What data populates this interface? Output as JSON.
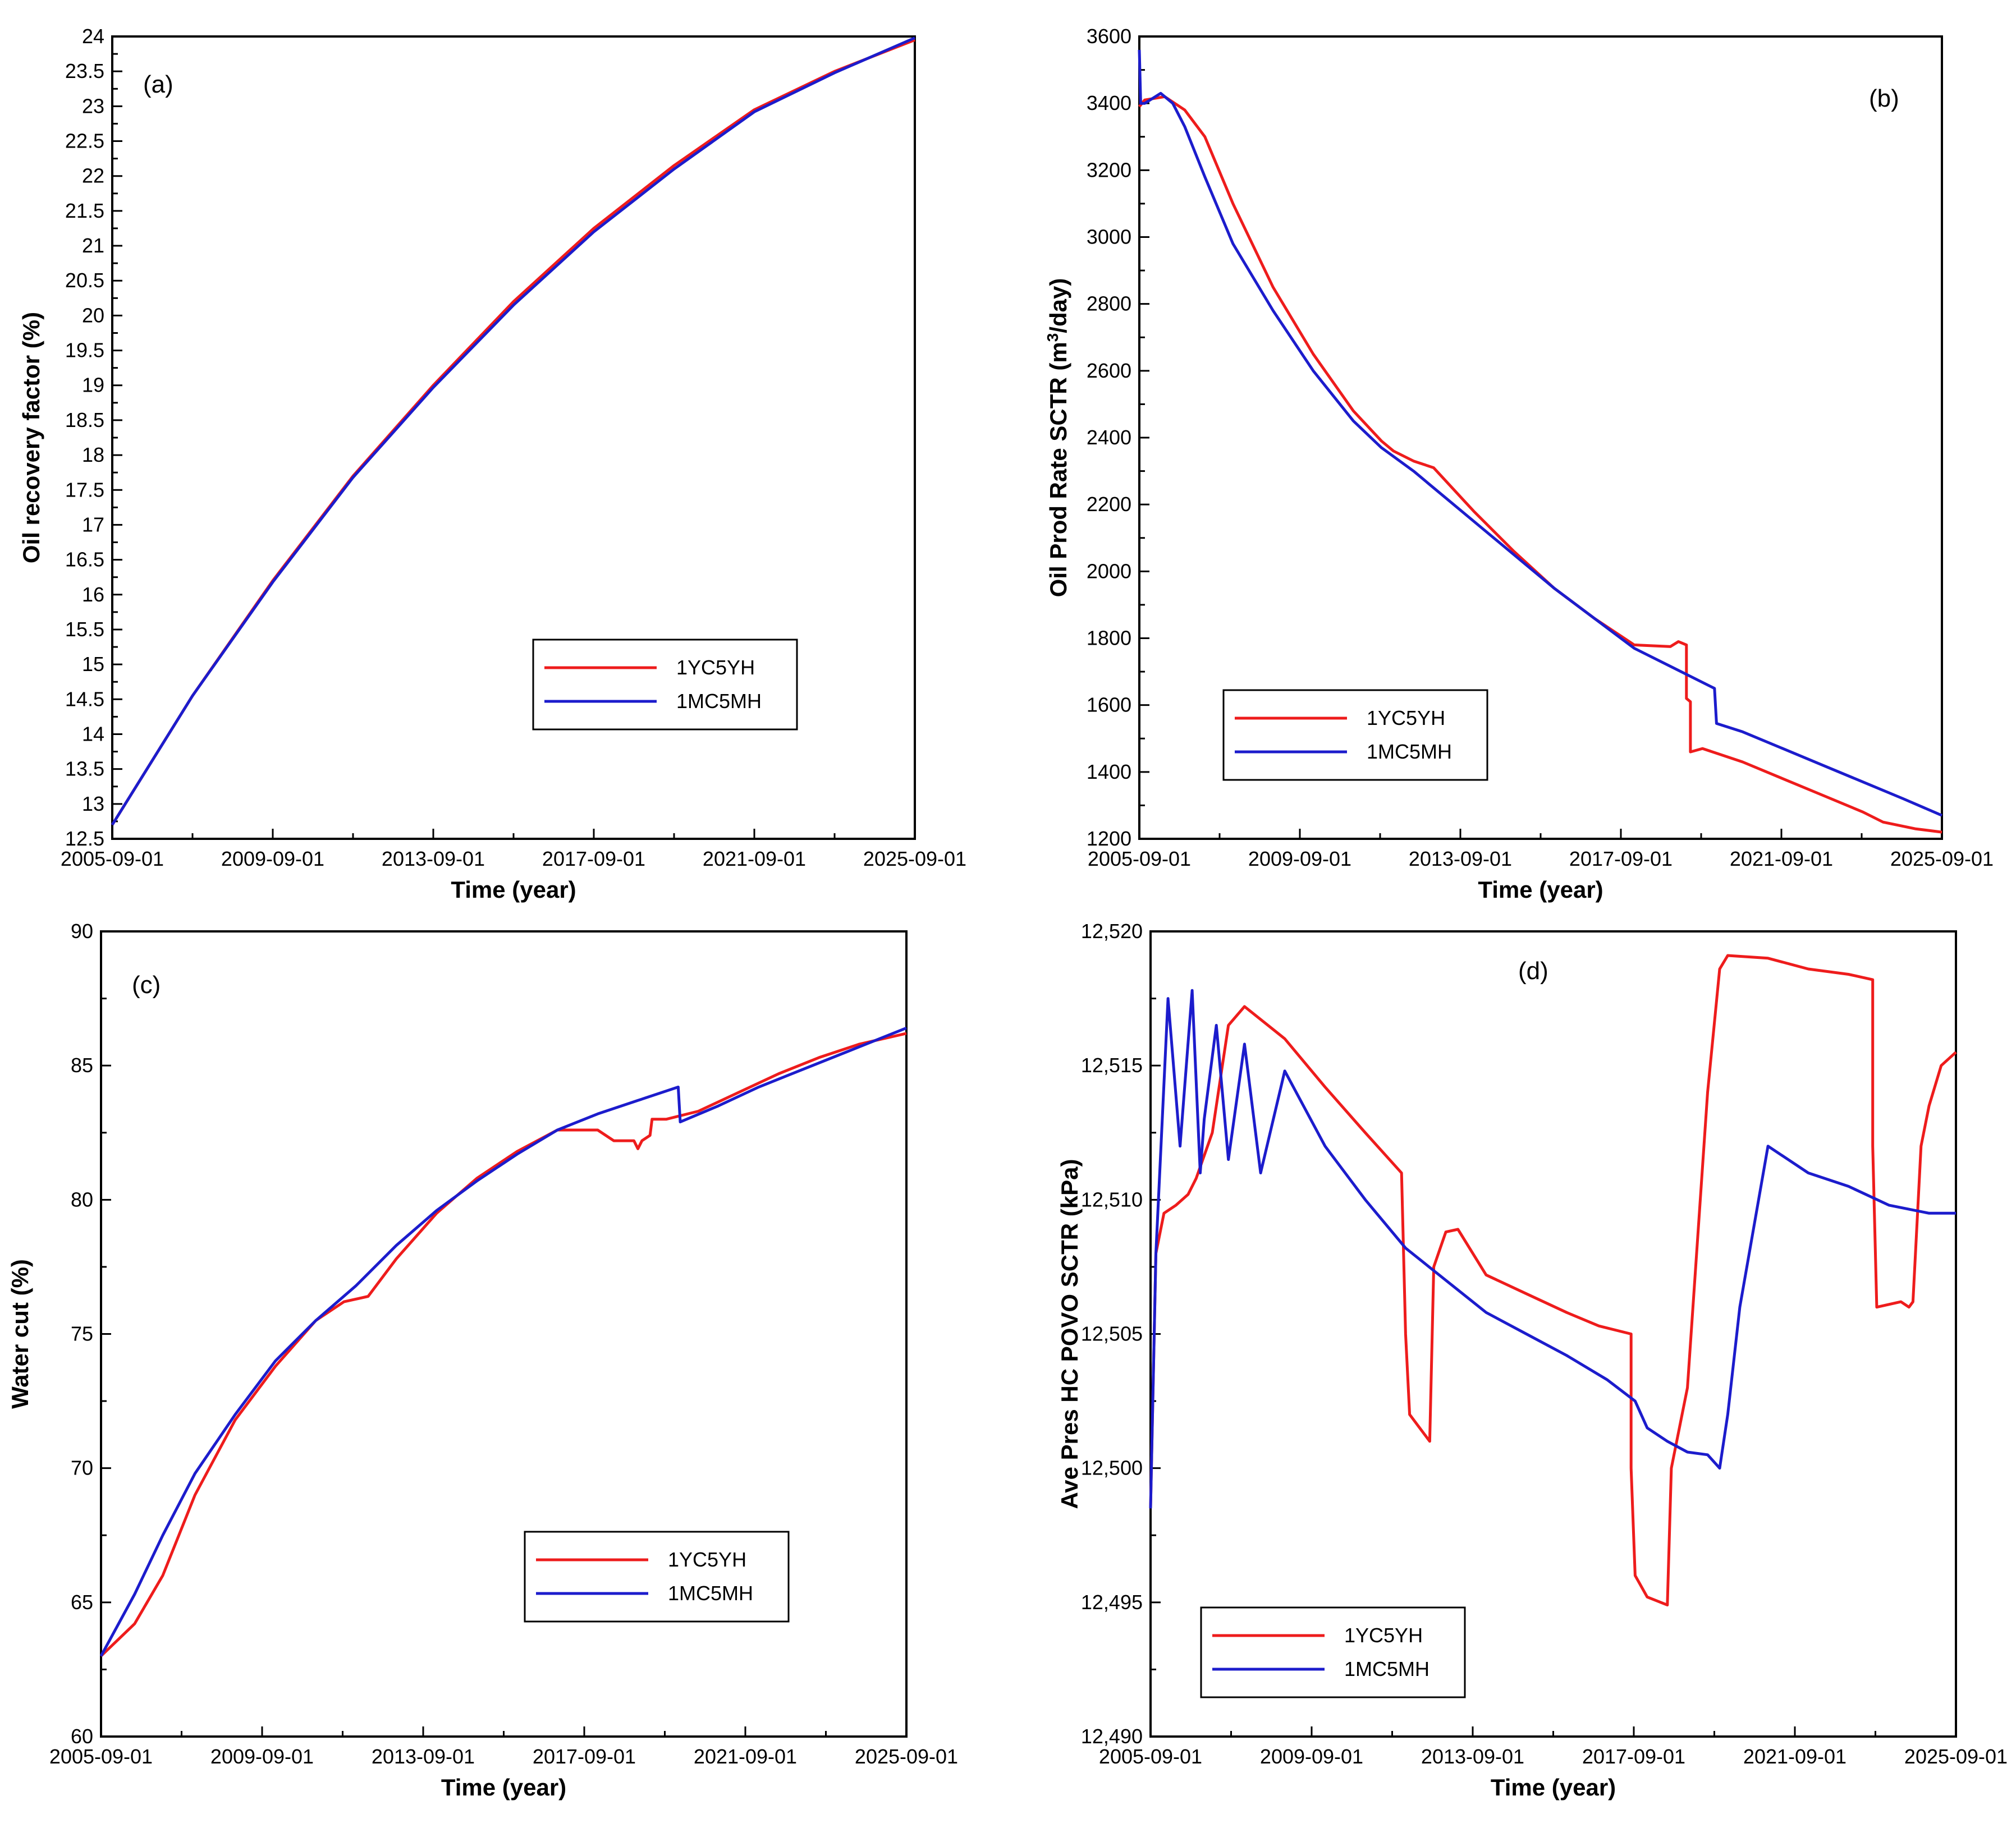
{
  "colors": {
    "red": "#ee1c1c",
    "blue": "#1c1ccc"
  },
  "chart_data": [
    {
      "type": "line",
      "panel": "(a)",
      "xlabel": "Time (year)",
      "ylabel": "Oil recovery factor (%)",
      "xlim": [
        2005.667,
        2025.667
      ],
      "x_ticks": [
        "2005-09-01",
        "2009-09-01",
        "2013-09-01",
        "2017-09-01",
        "2021-09-01",
        "2025-09-01"
      ],
      "ylim": [
        12.5,
        24
      ],
      "y_ticks": [
        "12.5",
        "13",
        "13.5",
        "14",
        "14.5",
        "15",
        "15.5",
        "16",
        "16.5",
        "17",
        "17.5",
        "18",
        "18.5",
        "19",
        "19.5",
        "20",
        "20.5",
        "21",
        "21.5",
        "22",
        "22.5",
        "23",
        "23.5",
        "24"
      ],
      "legend": {
        "position": "lower-right",
        "entries": [
          "1YC5YH",
          "1MC5MH"
        ]
      },
      "series": [
        {
          "name": "1YC5YH",
          "color": "red",
          "x": [
            2005.667,
            2007.667,
            2009.667,
            2011.667,
            2013.667,
            2015.667,
            2017.667,
            2019.667,
            2021.667,
            2023.667,
            2025.667
          ],
          "y": [
            12.7,
            14.55,
            16.2,
            17.7,
            19.0,
            20.2,
            21.25,
            22.15,
            22.95,
            23.5,
            23.95
          ]
        },
        {
          "name": "1MC5MH",
          "color": "blue",
          "x": [
            2005.667,
            2007.667,
            2009.667,
            2011.667,
            2013.667,
            2015.667,
            2017.667,
            2019.667,
            2021.667,
            2023.667,
            2025.667
          ],
          "y": [
            12.7,
            14.55,
            16.18,
            17.68,
            18.97,
            20.15,
            21.2,
            22.1,
            22.92,
            23.48,
            23.98
          ]
        }
      ]
    },
    {
      "type": "line",
      "panel": "(b)",
      "xlabel": "Time (year)",
      "ylabel_main": "Oil Prod Rate SCTR (m",
      "ylabel_sup": "3",
      "ylabel_end": "/day)",
      "xlim": [
        2005.667,
        2025.667
      ],
      "x_ticks": [
        "2005-09-01",
        "2009-09-01",
        "2013-09-01",
        "2017-09-01",
        "2021-09-01",
        "2025-09-01"
      ],
      "ylim": [
        1200,
        3600
      ],
      "y_ticks": [
        "1200",
        "1400",
        "1600",
        "1800",
        "2000",
        "2200",
        "2400",
        "2600",
        "2800",
        "3000",
        "3200",
        "3400",
        "3600"
      ],
      "legend": {
        "position": "lower-left",
        "entries": [
          "1YC5YH",
          "1MC5MH"
        ]
      },
      "series": [
        {
          "name": "1YC5YH",
          "color": "red",
          "x": [
            2005.667,
            2005.8,
            2006.3,
            2006.8,
            2007.3,
            2008.0,
            2009.0,
            2010.0,
            2011.0,
            2011.7,
            2012.0,
            2012.5,
            2013.0,
            2014.0,
            2015.0,
            2016.0,
            2017.0,
            2018.0,
            2018.9,
            2019.1,
            2019.3,
            2019.3,
            2019.4,
            2019.4,
            2019.7,
            2020.7,
            2021.7,
            2022.7,
            2023.7,
            2024.2,
            2025.0,
            2025.667
          ],
          "y": [
            3390,
            3410,
            3420,
            3380,
            3300,
            3100,
            2850,
            2650,
            2480,
            2390,
            2360,
            2330,
            2310,
            2180,
            2060,
            1950,
            1860,
            1780,
            1775,
            1790,
            1780,
            1620,
            1610,
            1460,
            1470,
            1430,
            1380,
            1330,
            1280,
            1250,
            1230,
            1220
          ]
        },
        {
          "name": "1MC5MH",
          "color": "blue",
          "x": [
            2005.667,
            2005.7,
            2005.8,
            2006.2,
            2006.5,
            2006.8,
            2007.3,
            2008.0,
            2009.0,
            2010.0,
            2011.0,
            2011.7,
            2012.5,
            2013.0,
            2014.0,
            2015.0,
            2016.0,
            2017.0,
            2018.0,
            2019.0,
            2020.0,
            2020.05,
            2020.7,
            2021.7,
            2022.7,
            2023.7,
            2024.7,
            2025.667
          ],
          "y": [
            3560,
            3400,
            3400,
            3430,
            3400,
            3330,
            3180,
            2980,
            2780,
            2600,
            2450,
            2370,
            2300,
            2250,
            2150,
            2050,
            1950,
            1860,
            1770,
            1710,
            1650,
            1545,
            1520,
            1470,
            1420,
            1370,
            1320,
            1270
          ]
        }
      ]
    },
    {
      "type": "line",
      "panel": "(c)",
      "xlabel": "Time (year)",
      "ylabel": "Water cut (%)",
      "xlim": [
        2005.667,
        2025.667
      ],
      "x_ticks": [
        "2005-09-01",
        "2009-09-01",
        "2013-09-01",
        "2017-09-01",
        "2021-09-01",
        "2025-09-01"
      ],
      "ylim": [
        60,
        90
      ],
      "y_ticks": [
        "60",
        "65",
        "70",
        "75",
        "80",
        "85",
        "90"
      ],
      "legend": {
        "position": "lower-right",
        "entries": [
          "1YC5YH",
          "1MC5MH"
        ]
      },
      "series": [
        {
          "name": "1YC5YH",
          "color": "red",
          "x": [
            2005.667,
            2006.5,
            2007.2,
            2008.0,
            2009.0,
            2010.0,
            2011.0,
            2011.7,
            2012.3,
            2013.0,
            2014.0,
            2015.0,
            2016.0,
            2017.0,
            2018.0,
            2018.4,
            2018.9,
            2019.0,
            2019.1,
            2019.3,
            2019.35,
            2019.7,
            2020.5,
            2021.5,
            2022.5,
            2023.5,
            2024.5,
            2025.667
          ],
          "y": [
            63.0,
            64.2,
            66.0,
            69.0,
            71.8,
            73.8,
            75.5,
            76.2,
            76.4,
            77.8,
            79.5,
            80.8,
            81.8,
            82.6,
            82.6,
            82.2,
            82.2,
            81.9,
            82.2,
            82.4,
            83.0,
            83.0,
            83.3,
            84.0,
            84.7,
            85.3,
            85.8,
            86.2
          ]
        },
        {
          "name": "1MC5MH",
          "color": "blue",
          "x": [
            2005.667,
            2006.5,
            2007.2,
            2008.0,
            2009.0,
            2010.0,
            2011.0,
            2012.0,
            2013.0,
            2014.0,
            2015.0,
            2016.0,
            2017.0,
            2018.0,
            2019.0,
            2020.0,
            2020.05,
            2021.0,
            2022.0,
            2023.0,
            2024.0,
            2025.0,
            2025.667
          ],
          "y": [
            63.0,
            65.3,
            67.5,
            69.8,
            72.0,
            74.0,
            75.5,
            76.8,
            78.3,
            79.6,
            80.7,
            81.7,
            82.6,
            83.2,
            83.7,
            84.2,
            82.9,
            83.5,
            84.2,
            84.8,
            85.4,
            86.0,
            86.4
          ]
        }
      ]
    },
    {
      "type": "line",
      "panel": "(d)",
      "xlabel": "Time (year)",
      "ylabel": "Ave Pres HC POVO SCTR (kPa)",
      "xlim": [
        2005.667,
        2025.667
      ],
      "x_ticks": [
        "2005-09-01",
        "2009-09-01",
        "2013-09-01",
        "2017-09-01",
        "2021-09-01",
        "2025-09-01"
      ],
      "ylim": [
        12490,
        12520
      ],
      "y_ticks": [
        "12,490",
        "12,495",
        "12,500",
        "12,505",
        "12,510",
        "12,515",
        "12,520"
      ],
      "legend": {
        "position": "lower-left",
        "entries": [
          "1YC5YH",
          "1MC5MH"
        ]
      },
      "series": [
        {
          "name": "1YC5YH",
          "color": "red",
          "x": [
            2005.667,
            2005.8,
            2006.0,
            2006.3,
            2006.6,
            2006.8,
            2007.2,
            2007.6,
            2008.0,
            2009.0,
            2010.0,
            2011.0,
            2011.9,
            2012.0,
            2012.1,
            2012.3,
            2012.6,
            2012.7,
            2013.0,
            2013.3,
            2014.0,
            2015.0,
            2016.0,
            2016.8,
            2017.6,
            2017.6,
            2017.7,
            2018.0,
            2018.5,
            2018.6,
            2019.0,
            2019.5,
            2019.8,
            2020.0,
            2021.0,
            2022.0,
            2023.0,
            2023.6,
            2023.6,
            2023.7,
            2024.3,
            2024.5,
            2024.6,
            2024.8,
            2025.0,
            2025.3,
            2025.667
          ],
          "y": [
            12498.5,
            12508.0,
            12509.5,
            12509.8,
            12510.2,
            12510.8,
            12512.5,
            12516.5,
            12517.2,
            12516.0,
            12514.2,
            12512.5,
            12511.0,
            12505.0,
            12502.0,
            12501.6,
            12501.0,
            12507.5,
            12508.8,
            12508.9,
            12507.2,
            12506.5,
            12505.8,
            12505.3,
            12505.0,
            12500.0,
            12496.0,
            12495.2,
            12494.9,
            12500.0,
            12503.0,
            12514.0,
            12518.6,
            12519.1,
            12519.0,
            12518.6,
            12518.4,
            12518.2,
            12512.0,
            12506.0,
            12506.2,
            12506.0,
            12506.2,
            12512.0,
            12513.5,
            12515.0,
            12515.5
          ]
        },
        {
          "name": "1MC5MH",
          "color": "blue",
          "x": [
            2005.667,
            2005.8,
            2006.1,
            2006.4,
            2006.7,
            2006.9,
            2007.0,
            2007.3,
            2007.6,
            2008.0,
            2008.4,
            2009.0,
            2010.0,
            2011.0,
            2012.0,
            2013.0,
            2014.0,
            2015.0,
            2016.0,
            2017.0,
            2017.7,
            2018.0,
            2018.5,
            2019.0,
            2019.5,
            2019.8,
            2020.0,
            2020.3,
            2021.0,
            2022.0,
            2023.0,
            2024.0,
            2025.0,
            2025.667
          ],
          "y": [
            12498.5,
            12508.0,
            12517.5,
            12512.0,
            12517.8,
            12511.0,
            12513.0,
            12516.5,
            12511.5,
            12515.8,
            12511.0,
            12514.8,
            12512.0,
            12510.0,
            12508.2,
            12507.0,
            12505.8,
            12505.0,
            12504.2,
            12503.3,
            12502.5,
            12501.5,
            12501.0,
            12500.6,
            12500.5,
            12500.0,
            12502.0,
            12506.0,
            12512.0,
            12511.0,
            12510.5,
            12509.8,
            12509.5,
            12509.5
          ]
        }
      ]
    }
  ]
}
